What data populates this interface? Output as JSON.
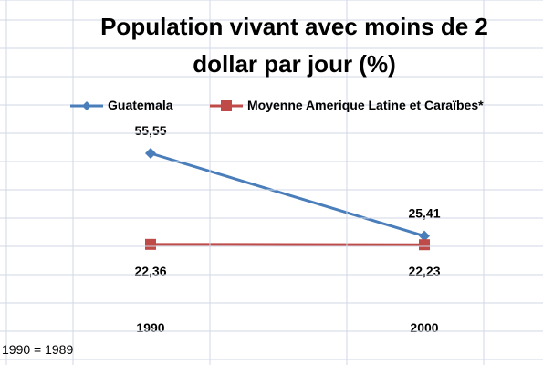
{
  "title_lines": [
    "Population vivant avec moins de 2",
    "dollar par jour (%)"
  ],
  "footnote": "1990 = 1989",
  "colors": {
    "guatemala": "#4a7ebb",
    "moyenne": "#be4b48",
    "gridline": "#d0d7e5"
  },
  "chart_data": {
    "type": "line",
    "title": "Population vivant avec moins de 2 dollar par jour (%)",
    "categories": [
      "1990",
      "2000"
    ],
    "series": [
      {
        "name": "Guatemala",
        "values": [
          55.55,
          25.41
        ],
        "labels": [
          "55,55",
          "25,41"
        ],
        "marker": "diamond"
      },
      {
        "name": "Moyenne Amerique Latine et Caraïbes*",
        "values": [
          22.36,
          22.23
        ],
        "labels": [
          "22,36",
          "22,23"
        ],
        "marker": "square"
      }
    ],
    "xlabel": "",
    "ylabel": "",
    "ylim": [
      0,
      100
    ],
    "grid": false,
    "legend": "top"
  }
}
